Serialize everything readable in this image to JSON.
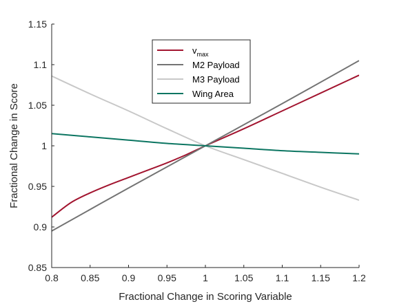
{
  "chart_data": {
    "type": "line",
    "title": "",
    "xlabel": "Fractional Change in Scoring Variable",
    "ylabel": "Fractional Change in Score",
    "xlim": [
      0.8,
      1.2
    ],
    "ylim": [
      0.85,
      1.15
    ],
    "xticks": [
      "0.8",
      "0.85",
      "0.9",
      "0.95",
      "1",
      "1.05",
      "1.1",
      "1.15",
      "1.2"
    ],
    "yticks": [
      "0.85",
      "0.9",
      "0.95",
      "1",
      "1.05",
      "1.1",
      "1.15"
    ],
    "grid": false,
    "legend_position": "top-center",
    "series": [
      {
        "name": "v",
        "name_subscript": "max",
        "color": "#a2142f",
        "x": [
          0.8,
          0.825,
          0.85,
          0.875,
          0.9,
          0.925,
          0.95,
          0.975,
          1.0,
          1.05,
          1.1,
          1.15,
          1.2
        ],
        "y": [
          0.912,
          0.93,
          0.942,
          0.952,
          0.961,
          0.97,
          0.979,
          0.989,
          1.0,
          1.021,
          1.043,
          1.065,
          1.087
        ]
      },
      {
        "name": "M2 Payload",
        "color": "#737373",
        "x": [
          0.8,
          0.9,
          1.0,
          1.1,
          1.2
        ],
        "y": [
          0.895,
          0.948,
          1.0,
          1.052,
          1.105
        ]
      },
      {
        "name": "M3 Payload",
        "color": "#c8c8c8",
        "x": [
          0.8,
          0.85,
          0.9,
          0.95,
          1.0,
          1.05,
          1.1,
          1.15,
          1.2
        ],
        "y": [
          1.086,
          1.064,
          1.043,
          1.021,
          1.0,
          0.983,
          0.966,
          0.949,
          0.933
        ]
      },
      {
        "name": "Wing Area",
        "color": "#0b7561",
        "x": [
          0.8,
          0.85,
          0.9,
          0.95,
          1.0,
          1.05,
          1.1,
          1.15,
          1.2
        ],
        "y": [
          1.015,
          1.011,
          1.007,
          1.003,
          1.0,
          0.997,
          0.994,
          0.992,
          0.99
        ]
      }
    ]
  }
}
